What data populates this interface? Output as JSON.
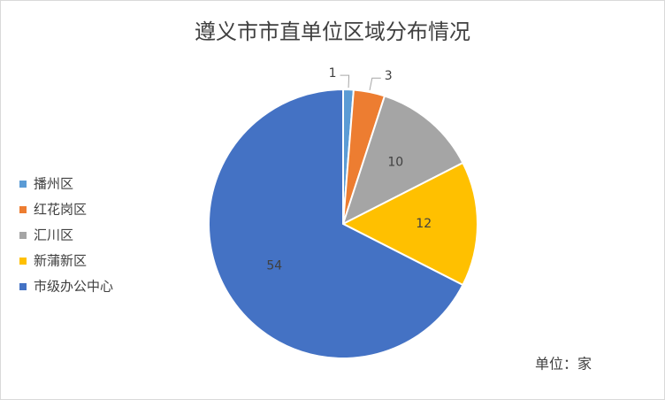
{
  "chart_data": {
    "type": "pie",
    "title": "遵义市市直单位区域分布情况",
    "categories": [
      "播州区",
      "红花岗区",
      "汇川区",
      "新蒲新区",
      "市级办公中心"
    ],
    "values": [
      1,
      3,
      10,
      12,
      54
    ],
    "colors": [
      "#5B9BD5",
      "#ED7D31",
      "#A5A5A5",
      "#FFC000",
      "#4472C4"
    ],
    "legend": "left",
    "annotation": "单位：家"
  }
}
